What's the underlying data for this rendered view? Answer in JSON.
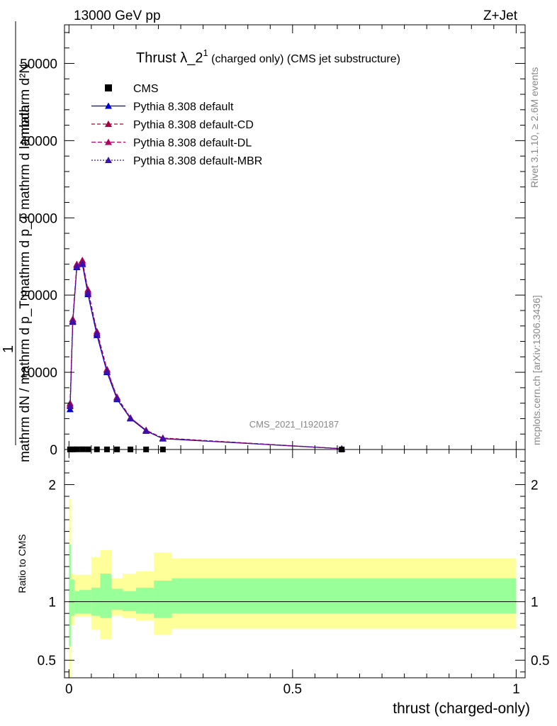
{
  "header": {
    "left": "13000 GeV pp",
    "right": "Z+Jet"
  },
  "side": {
    "rivet": "Rivet 3.1.10, ≥ 2.6M events",
    "mcplots": "mcplots.cern.ch [arXiv:1306.3436]"
  },
  "chart_data": {
    "type": "line",
    "title": "Thrust λ_2",
    "title_sup": "1",
    "title_rest": " (charged only) (CMS jet substructure)",
    "watermark": "CMS_2021_I1920187",
    "xlabel": "thrust (charged-only)",
    "ylabel_top": "1",
    "ylabel_num": "mathrm d²N",
    "ylabel_den": "mathrm dN / mathrm d p_T mathrm d p_T mathrm d lambda",
    "ratio_ylabel": "Ratio to CMS",
    "xlim": [
      -0.01,
      1.02
    ],
    "ylim": [
      0,
      55000
    ],
    "ratio_ylim": [
      0.35,
      2.3
    ],
    "x_ticks": [
      {
        "v": 0,
        "t": "0"
      },
      {
        "v": 0.5,
        "t": "0.5"
      },
      {
        "v": 1,
        "t": "1"
      }
    ],
    "y_ticks": [
      {
        "v": 0,
        "t": "0"
      },
      {
        "v": 10000,
        "t": "10000"
      },
      {
        "v": 20000,
        "t": "20000"
      },
      {
        "v": 30000,
        "t": "30000"
      },
      {
        "v": 40000,
        "t": "40000"
      },
      {
        "v": 50000,
        "t": "50000"
      }
    ],
    "ratio_ticks": [
      {
        "v": 0.5,
        "t": "0.5"
      },
      {
        "v": 1,
        "t": "1"
      },
      {
        "v": 2,
        "t": "2"
      }
    ],
    "legend": [
      "CMS",
      "Pythia 8.308 default",
      "Pythia 8.308 default-CD",
      "Pythia 8.308 default-DL",
      "Pythia 8.308 default-MBR"
    ],
    "x": [
      0.0025,
      0.0085,
      0.0175,
      0.03,
      0.0425,
      0.0625,
      0.085,
      0.1075,
      0.1375,
      0.1725,
      0.21,
      0.61
    ],
    "cms": [
      10,
      15,
      22,
      25,
      22,
      18,
      14,
      12,
      10,
      9,
      8,
      3
    ],
    "series": [
      {
        "name": "Pythia 8.308 default",
        "color": "#0000cc",
        "dash": "",
        "values": [
          5200,
          16500,
          23600,
          24000,
          20100,
          14800,
          10000,
          6500,
          4000,
          2400,
          1400,
          100
        ]
      },
      {
        "name": "Pythia 8.308 default-CD",
        "color": "#a0003c",
        "dash": "5,3",
        "values": [
          6000,
          16900,
          24000,
          24500,
          20700,
          15300,
          10400,
          6800,
          4100,
          2500,
          1500,
          100
        ]
      },
      {
        "name": "Pythia 8.308 default-DL",
        "color": "#b00060",
        "dash": "6,3",
        "values": [
          5800,
          16700,
          23900,
          24300,
          20500,
          15100,
          10300,
          6700,
          4100,
          2500,
          1450,
          100
        ]
      },
      {
        "name": "Pythia 8.308 default-MBR",
        "color": "#3a10b0",
        "dash": "2,2",
        "values": [
          5600,
          16600,
          23700,
          24100,
          20300,
          15000,
          10100,
          6600,
          4050,
          2450,
          1420,
          100
        ]
      }
    ],
    "ratio_bands": [
      {
        "x0": 0.0,
        "x1": 0.005,
        "g_lo": 0.62,
        "g_hi": 1.49,
        "y_lo": 0.2,
        "y_hi": 1.88
      },
      {
        "x0": 0.005,
        "x1": 0.012,
        "g_lo": 0.88,
        "g_hi": 1.19,
        "y_lo": 0.8,
        "y_hi": 1.24
      },
      {
        "x0": 0.012,
        "x1": 0.023,
        "g_lo": 0.9,
        "g_hi": 1.09,
        "y_lo": 0.87,
        "y_hi": 1.23
      },
      {
        "x0": 0.023,
        "x1": 0.05,
        "g_lo": 0.9,
        "g_hi": 1.1,
        "y_lo": 0.87,
        "y_hi": 1.23
      },
      {
        "x0": 0.05,
        "x1": 0.07,
        "g_lo": 0.88,
        "g_hi": 1.12,
        "y_lo": 0.76,
        "y_hi": 1.38
      },
      {
        "x0": 0.07,
        "x1": 0.095,
        "g_lo": 0.86,
        "g_hi": 1.24,
        "y_lo": 0.68,
        "y_hi": 1.44
      },
      {
        "x0": 0.095,
        "x1": 0.12,
        "g_lo": 0.93,
        "g_hi": 1.11,
        "y_lo": 0.88,
        "y_hi": 1.2
      },
      {
        "x0": 0.12,
        "x1": 0.15,
        "g_lo": 0.92,
        "g_hi": 1.09,
        "y_lo": 0.86,
        "y_hi": 1.24
      },
      {
        "x0": 0.15,
        "x1": 0.19,
        "g_lo": 0.9,
        "g_hi": 1.12,
        "y_lo": 0.84,
        "y_hi": 1.26
      },
      {
        "x0": 0.19,
        "x1": 0.23,
        "g_lo": 0.86,
        "g_hi": 1.18,
        "y_lo": 0.72,
        "y_hi": 1.42
      },
      {
        "x0": 0.23,
        "x1": 1.0,
        "g_lo": 0.9,
        "g_hi": 1.2,
        "y_lo": 0.77,
        "y_hi": 1.37
      }
    ]
  }
}
